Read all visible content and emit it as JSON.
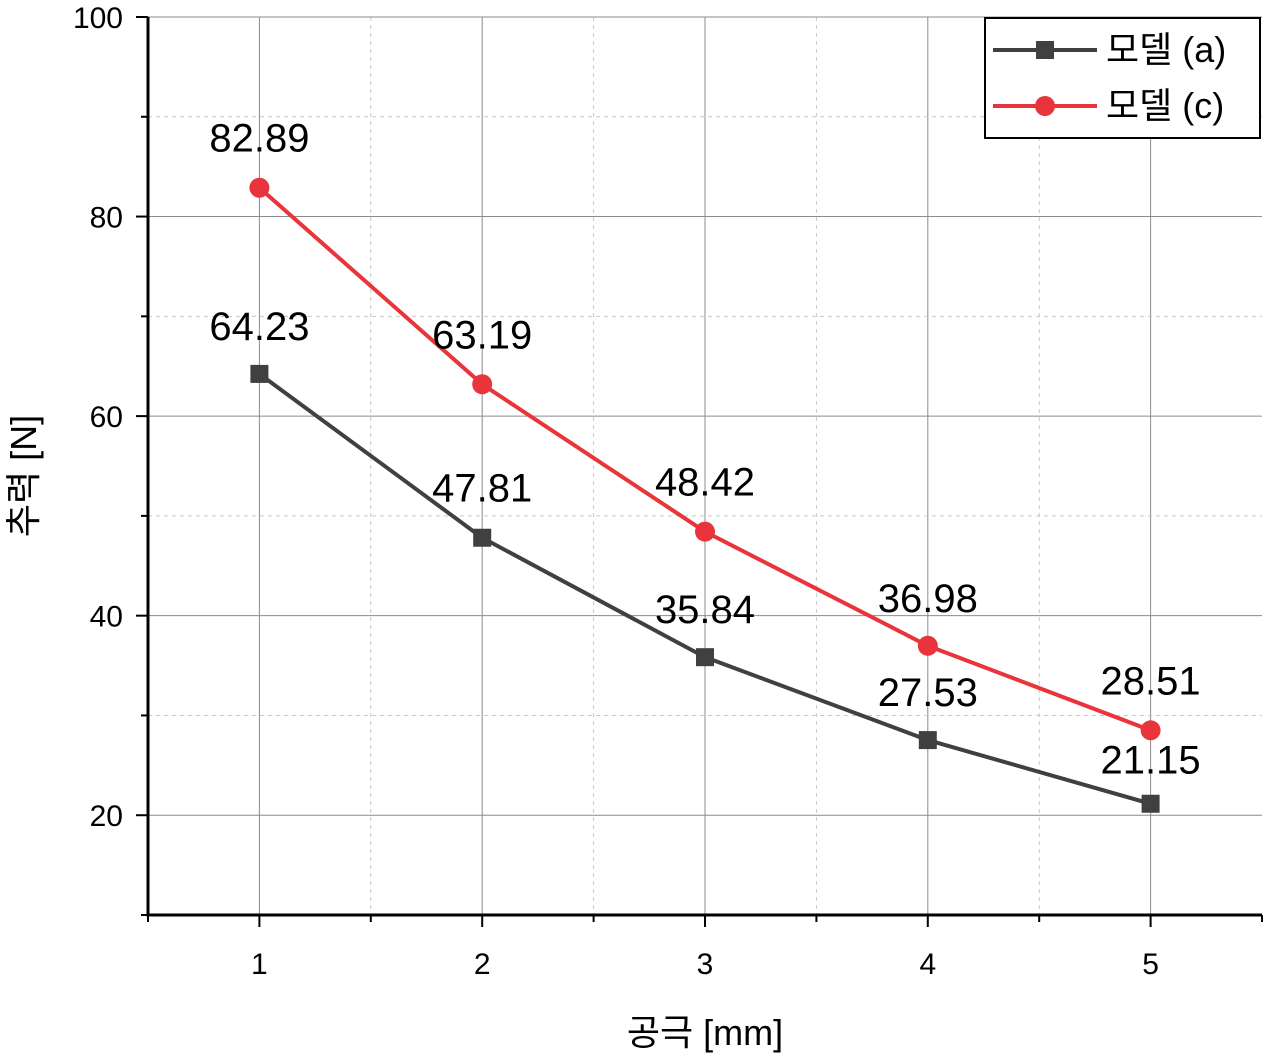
{
  "chart_data": {
    "type": "line",
    "title": "",
    "xlabel": "공극 [mm]",
    "ylabel": "추력 [N]",
    "x": [
      1,
      2,
      3,
      4,
      5
    ],
    "x_ticks": [
      "1",
      "2",
      "3",
      "4",
      "5"
    ],
    "xlim": [
      0.5,
      5.5
    ],
    "ylim": [
      10,
      100
    ],
    "y_ticks": [
      "20",
      "40",
      "60",
      "80",
      "100"
    ],
    "grid": true,
    "legend_position": "top-right",
    "series": [
      {
        "name": "모델 (a)",
        "color": "#404040",
        "marker": "square",
        "values": [
          64.23,
          47.81,
          35.84,
          27.53,
          21.15
        ],
        "labels": [
          "64.23",
          "47.81",
          "35.84",
          "27.53",
          "21.15"
        ]
      },
      {
        "name": "모델 (c)",
        "color": "#e8343a",
        "marker": "circle",
        "values": [
          82.89,
          63.19,
          48.42,
          36.98,
          28.51
        ],
        "labels": [
          "82.89",
          "63.19",
          "48.42",
          "36.98",
          "28.51"
        ]
      }
    ]
  }
}
